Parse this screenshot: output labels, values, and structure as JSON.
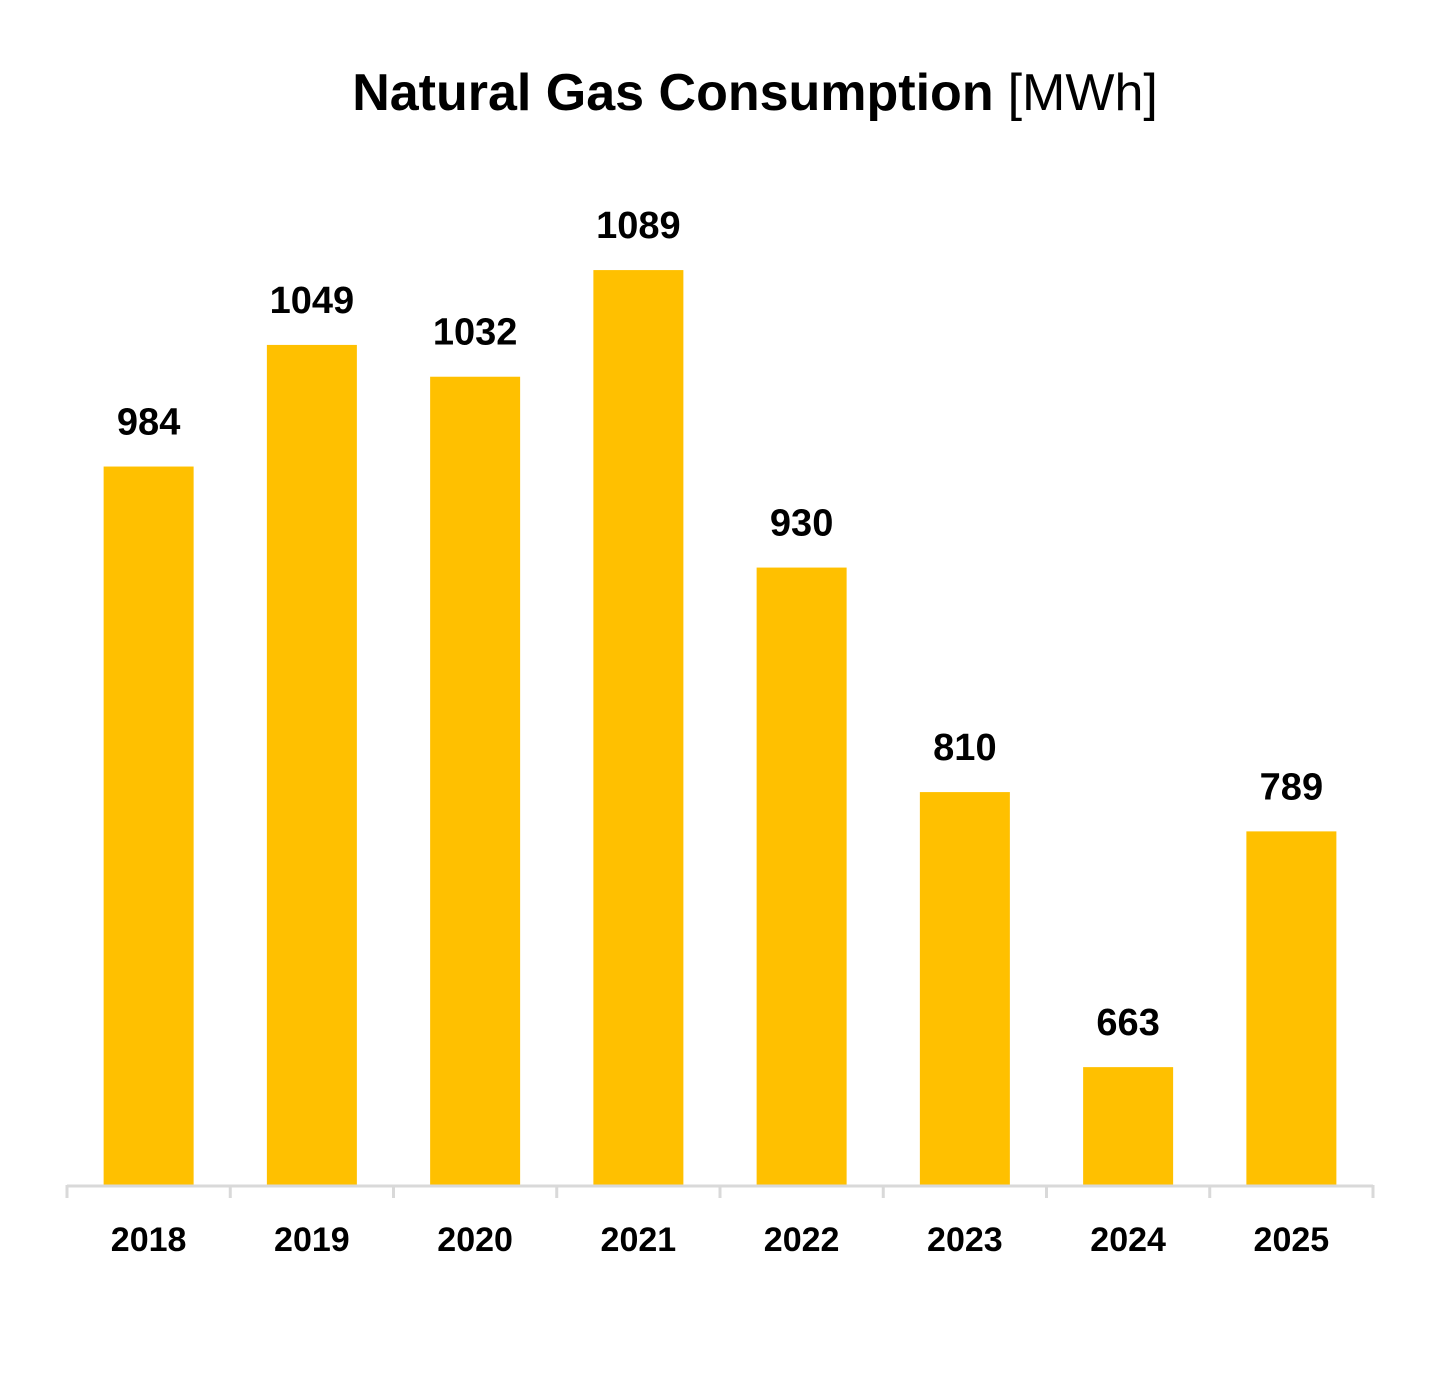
{
  "chart_data": {
    "type": "bar",
    "title": "Natural Gas Consumption",
    "title_unit": "[MWh]",
    "xlabel": "",
    "ylabel": "",
    "categories": [
      "2018",
      "2019",
      "2020",
      "2021",
      "2022",
      "2023",
      "2024",
      "2025"
    ],
    "values": [
      984,
      1049,
      1032,
      1089,
      930,
      810,
      663,
      789
    ],
    "ylim": [
      600,
      1200
    ],
    "y_axis_visible": false,
    "grid": false,
    "legend": "none",
    "data_labels": true,
    "bar_color": "#FFC000",
    "axis_color": "#D9D9D9"
  }
}
